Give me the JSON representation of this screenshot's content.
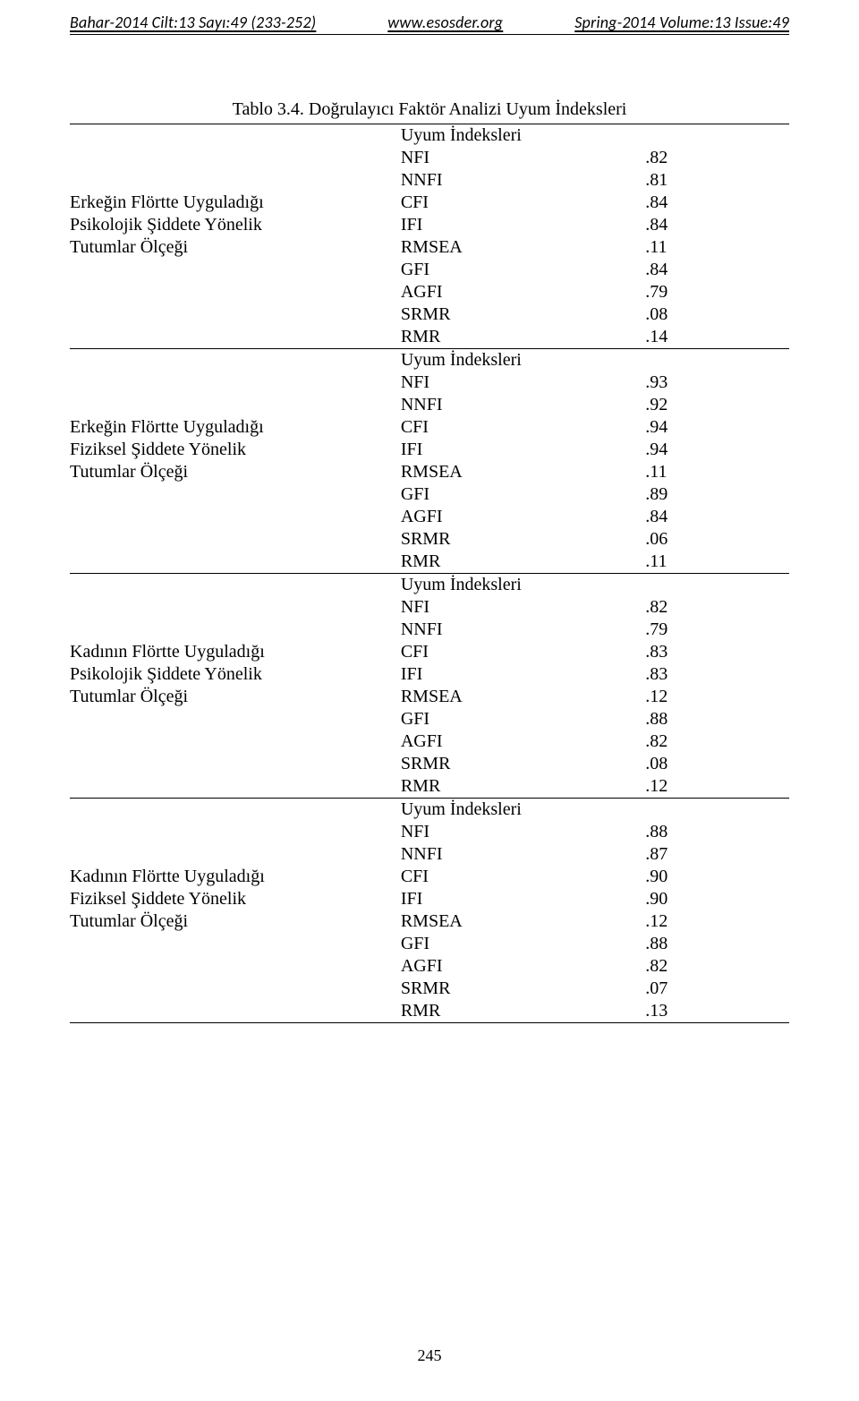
{
  "header": {
    "left": "Bahar-2014  Cilt:13  Sayı:49 (233-252)",
    "center": "www.esosder.org",
    "right": "Spring-2014 Volume:13 Issue:49"
  },
  "table": {
    "caption": "Tablo 3.4. Doğrulayıcı Faktör Analizi Uyum İndeksleri",
    "uyum_label": "Uyum İndeksleri",
    "blocks": [
      {
        "group_lines": [
          "Erkeğin Flörtte Uyguladığı",
          "Psikolojik Şiddete Yönelik",
          "Tutumlar Ölçeği"
        ],
        "indices": [
          {
            "name": "NFI",
            "value": ".82"
          },
          {
            "name": "NNFI",
            "value": ".81"
          },
          {
            "name": "CFI",
            "value": ".84"
          },
          {
            "name": "IFI",
            "value": ".84"
          },
          {
            "name": "RMSEA",
            "value": ".11"
          },
          {
            "name": "GFI",
            "value": ".84"
          },
          {
            "name": "AGFI",
            "value": ".79"
          },
          {
            "name": "SRMR",
            "value": ".08"
          },
          {
            "name": "RMR",
            "value": ".14"
          }
        ]
      },
      {
        "group_lines": [
          "Erkeğin Flörtte Uyguladığı",
          "Fiziksel Şiddete Yönelik",
          "Tutumlar Ölçeği"
        ],
        "indices": [
          {
            "name": "NFI",
            "value": ".93"
          },
          {
            "name": "NNFI",
            "value": ".92"
          },
          {
            "name": "CFI",
            "value": ".94"
          },
          {
            "name": "IFI",
            "value": ".94"
          },
          {
            "name": "RMSEA",
            "value": ".11"
          },
          {
            "name": "GFI",
            "value": ".89"
          },
          {
            "name": "AGFI",
            "value": ".84"
          },
          {
            "name": "SRMR",
            "value": ".06"
          },
          {
            "name": "RMR",
            "value": ".11"
          }
        ]
      },
      {
        "group_lines": [
          "Kadının Flörtte Uyguladığı",
          "Psikolojik Şiddete Yönelik",
          "Tutumlar Ölçeği"
        ],
        "indices": [
          {
            "name": "NFI",
            "value": ".82"
          },
          {
            "name": "NNFI",
            "value": ".79"
          },
          {
            "name": "CFI",
            "value": ".83"
          },
          {
            "name": "IFI",
            "value": ".83"
          },
          {
            "name": "RMSEA",
            "value": ".12"
          },
          {
            "name": "GFI",
            "value": ".88"
          },
          {
            "name": "AGFI",
            "value": ".82"
          },
          {
            "name": "SRMR",
            "value": ".08"
          },
          {
            "name": "RMR",
            "value": ".12"
          }
        ]
      },
      {
        "group_lines": [
          "Kadının Flörtte Uyguladığı",
          "Fiziksel Şiddete Yönelik",
          "Tutumlar Ölçeği"
        ],
        "indices": [
          {
            "name": "NFI",
            "value": ".88"
          },
          {
            "name": "NNFI",
            "value": ".87"
          },
          {
            "name": "CFI",
            "value": ".90"
          },
          {
            "name": "IFI",
            "value": ".90"
          },
          {
            "name": "RMSEA",
            "value": ".12"
          },
          {
            "name": "GFI",
            "value": ".88"
          },
          {
            "name": "AGFI",
            "value": ".82"
          },
          {
            "name": "SRMR",
            "value": ".07"
          },
          {
            "name": "RMR",
            "value": ".13"
          }
        ]
      }
    ]
  },
  "page_number": "245"
}
